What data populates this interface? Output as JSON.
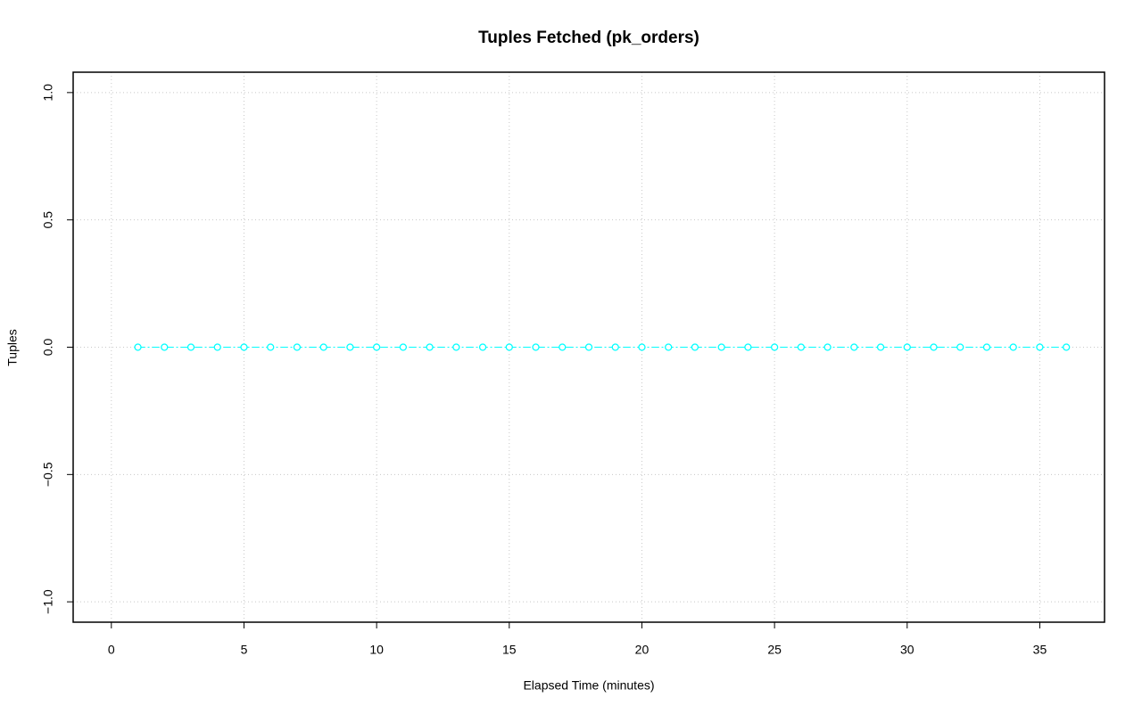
{
  "chart_data": {
    "type": "line",
    "title": "Tuples Fetched (pk_orders)",
    "x_label": "Elapsed Time (minutes)",
    "y_label": "Tuples",
    "x": [
      1,
      2,
      3,
      4,
      5,
      6,
      7,
      8,
      9,
      10,
      11,
      12,
      13,
      14,
      15,
      16,
      17,
      18,
      19,
      20,
      21,
      22,
      23,
      24,
      25,
      26,
      27,
      28,
      29,
      30,
      31,
      32,
      33,
      34,
      35,
      36
    ],
    "values": [
      0,
      0,
      0,
      0,
      0,
      0,
      0,
      0,
      0,
      0,
      0,
      0,
      0,
      0,
      0,
      0,
      0,
      0,
      0,
      0,
      0,
      0,
      0,
      0,
      0,
      0,
      0,
      0,
      0,
      0,
      0,
      0,
      0,
      0,
      0,
      0
    ],
    "color": "#00ffff",
    "xlim": [
      -1.44,
      37.44
    ],
    "ylim": [
      -1.08,
      1.08
    ],
    "xticks": [
      0,
      5,
      10,
      15,
      20,
      25,
      30,
      35
    ],
    "yticks": [
      {
        "value": -1,
        "label": "−1.0"
      },
      {
        "value": -0.5,
        "label": "−0.5"
      },
      {
        "value": 0,
        "label": "0.0"
      },
      {
        "value": 0.5,
        "label": "0.5"
      },
      {
        "value": 1,
        "label": "1.0"
      }
    ],
    "grid": true
  }
}
